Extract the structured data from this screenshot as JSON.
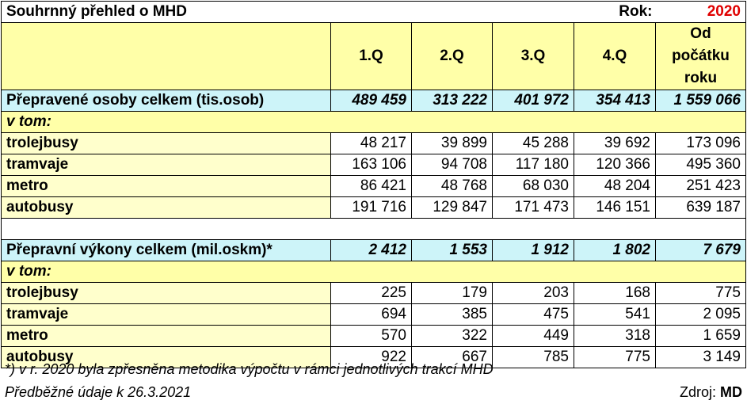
{
  "title": "Souhrnný přehled o MHD",
  "rok_label": "Rok:",
  "rok_value": "2020",
  "columns": [
    "1.Q",
    "2.Q",
    "3.Q",
    "4.Q",
    "Od počátku roku"
  ],
  "persons": {
    "total_label": "Přepravené osoby celkem (tis.osob)",
    "total_values": [
      "489 459",
      "313 222",
      "401 972",
      "354 413",
      "1 559 066"
    ],
    "subheading": "v tom:",
    "rows": [
      {
        "label": "trolejbusy",
        "values": [
          "48 217",
          "39 899",
          "45 288",
          "39 692",
          "173 096"
        ]
      },
      {
        "label": "tramvaje",
        "values": [
          "163 106",
          "94 708",
          "117 180",
          "120 366",
          "495 360"
        ]
      },
      {
        "label": "metro",
        "values": [
          "86 421",
          "48 768",
          "68 030",
          "48 204",
          "251 423"
        ]
      },
      {
        "label": "autobusy",
        "values": [
          "191 716",
          "129 847",
          "171 473",
          "146 151",
          "639 187"
        ]
      }
    ]
  },
  "performance": {
    "total_label": "Přepravní výkony celkem (mil.oskm)*",
    "total_values": [
      "2 412",
      "1 553",
      "1 912",
      "1 802",
      "7 679"
    ],
    "subheading": "v tom:",
    "rows": [
      {
        "label": "trolejbusy",
        "values": [
          "225",
          "179",
          "203",
          "168",
          "775"
        ]
      },
      {
        "label": "tramvaje",
        "values": [
          "694",
          "385",
          "475",
          "541",
          "2 095"
        ]
      },
      {
        "label": "metro",
        "values": [
          "570",
          "322",
          "449",
          "318",
          "1 659"
        ]
      },
      {
        "label": "autobusy",
        "values": [
          "922",
          "667",
          "785",
          "775",
          "3 149"
        ]
      }
    ]
  },
  "footnote": "*) v r. 2020 byla zpřesněna metodika výpočtu v rámci jednotlivých trakcí MHD",
  "preliminary_note": "Předběžné údaje k 26.3.2021",
  "source_label": "Zdroj:",
  "source_value": "MD"
}
